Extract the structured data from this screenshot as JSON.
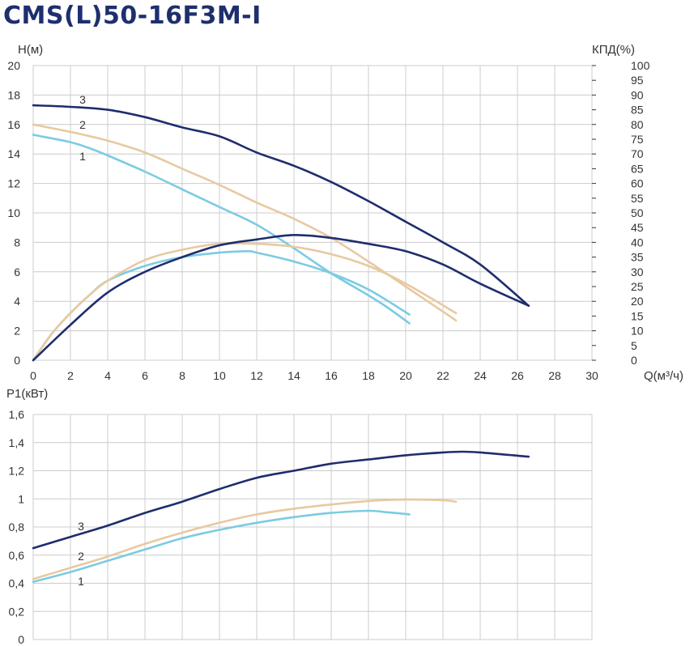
{
  "title": "CMS(L)50-16F3M-I",
  "colors": {
    "curve1": "#7ccbe3",
    "curve2": "#e8c9a0",
    "curve3": "#1f2d6d",
    "grid": "#cccccc",
    "axis": "#333333",
    "title": "#1e2f6e"
  },
  "chart_data": [
    {
      "type": "line",
      "xlabel": "Q(м³/ч)",
      "ylabel": "Н(м)",
      "y2label": "КПД(%)",
      "xlim": [
        0,
        30
      ],
      "ylim": [
        0,
        20
      ],
      "y2lim": [
        0,
        100
      ],
      "xticks": [
        "0",
        "2",
        "4",
        "6",
        "8",
        "10",
        "12",
        "14",
        "16",
        "18",
        "20",
        "22",
        "24",
        "26",
        "28",
        "30"
      ],
      "yticks": [
        "0",
        "2",
        "4",
        "6",
        "8",
        "10",
        "12",
        "14",
        "16",
        "18",
        "20"
      ],
      "y2ticks": [
        "0",
        "5",
        "10",
        "15",
        "20",
        "25",
        "30",
        "35",
        "40",
        "45",
        "50",
        "55",
        "60",
        "65",
        "70",
        "75",
        "80",
        "85",
        "90",
        "95",
        "100"
      ],
      "grid": true,
      "series": [
        {
          "name": "1",
          "kind": "head",
          "x": [
            0,
            2,
            3,
            4,
            6,
            8,
            10,
            12,
            14,
            16,
            18,
            19,
            20.2
          ],
          "y": [
            15.3,
            14.8,
            14.4,
            13.9,
            12.8,
            11.6,
            10.4,
            9.2,
            7.6,
            5.9,
            4.4,
            3.6,
            2.5
          ]
        },
        {
          "name": "2",
          "kind": "head",
          "x": [
            0,
            2,
            4,
            6,
            8,
            10,
            12,
            14,
            16,
            18,
            20,
            22,
            22.7
          ],
          "y": [
            16.0,
            15.5,
            14.9,
            14.1,
            13.0,
            11.9,
            10.7,
            9.6,
            8.3,
            6.7,
            5.0,
            3.3,
            2.7
          ]
        },
        {
          "name": "3",
          "kind": "head",
          "x": [
            0,
            2,
            4,
            6,
            8,
            10,
            12,
            14,
            16,
            18,
            20,
            22,
            24,
            26.6
          ],
          "y": [
            17.3,
            17.2,
            17.0,
            16.5,
            15.8,
            15.2,
            14.1,
            13.2,
            12.1,
            10.8,
            9.4,
            8.0,
            6.5,
            3.7
          ]
        },
        {
          "name": "1",
          "kind": "efficiency",
          "x": [
            0,
            1,
            2,
            3,
            4,
            6,
            8,
            10,
            11.5,
            12,
            14,
            16,
            18,
            20.2
          ],
          "y": [
            0,
            9,
            16,
            22,
            27,
            32,
            35,
            36.5,
            37,
            36.5,
            33.5,
            29.5,
            24,
            15.5
          ]
        },
        {
          "name": "2",
          "kind": "efficiency",
          "x": [
            0,
            1,
            2,
            3,
            4,
            6,
            8,
            10,
            12,
            14,
            16,
            18,
            20,
            22.7
          ],
          "y": [
            0,
            9,
            16,
            22,
            27,
            34,
            37.5,
            39.5,
            39.5,
            38.5,
            36,
            32,
            26,
            16
          ]
        },
        {
          "name": "3",
          "kind": "efficiency",
          "x": [
            0,
            2,
            4,
            6,
            8,
            10,
            12,
            14,
            16,
            18,
            20,
            22,
            24,
            26.6
          ],
          "y": [
            0,
            12,
            23,
            30,
            35,
            39,
            41,
            42.5,
            41.5,
            39.5,
            37,
            32.5,
            26,
            18.5
          ]
        }
      ]
    },
    {
      "type": "line",
      "ylabel": "P1(кВт)",
      "xlim": [
        0,
        30
      ],
      "ylim": [
        0,
        1.6
      ],
      "yticks": [
        "0",
        "0,2",
        "0,4",
        "0,6",
        "0,8",
        "1",
        "1,2",
        "1,4",
        "1,6"
      ],
      "grid": true,
      "series": [
        {
          "name": "1",
          "x": [
            0,
            2,
            4,
            6,
            8,
            10,
            12,
            14,
            16,
            18,
            19,
            20.2
          ],
          "y": [
            0.41,
            0.48,
            0.56,
            0.64,
            0.72,
            0.78,
            0.83,
            0.87,
            0.9,
            0.915,
            0.905,
            0.89
          ]
        },
        {
          "name": "2",
          "x": [
            0,
            2,
            4,
            6,
            8,
            10,
            12,
            14,
            16,
            18,
            20,
            22,
            22.7
          ],
          "y": [
            0.43,
            0.51,
            0.59,
            0.68,
            0.76,
            0.83,
            0.89,
            0.93,
            0.96,
            0.985,
            0.995,
            0.99,
            0.98
          ]
        },
        {
          "name": "3",
          "x": [
            0,
            2,
            4,
            6,
            8,
            10,
            12,
            14,
            16,
            18,
            20,
            22,
            23,
            24,
            26.6
          ],
          "y": [
            0.65,
            0.73,
            0.81,
            0.9,
            0.98,
            1.07,
            1.15,
            1.2,
            1.25,
            1.28,
            1.31,
            1.33,
            1.335,
            1.33,
            1.3
          ]
        }
      ]
    }
  ]
}
